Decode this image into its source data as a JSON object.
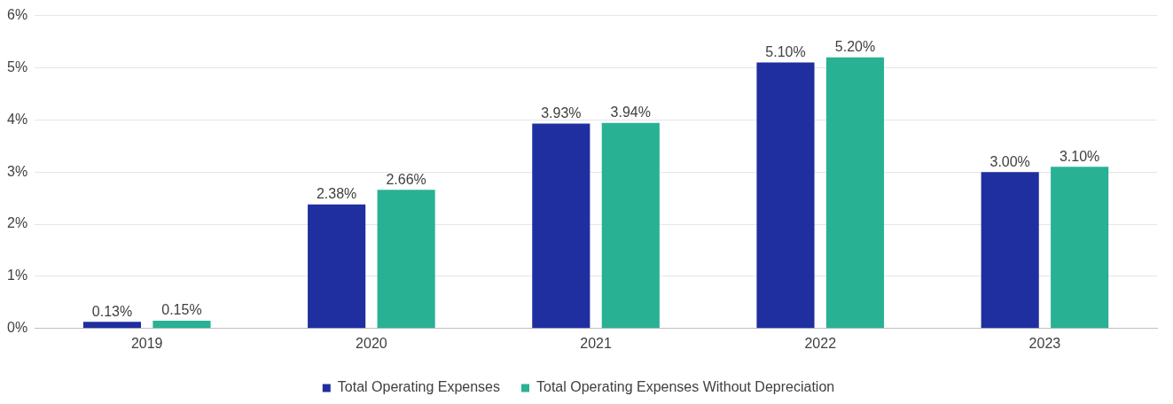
{
  "chart_data": {
    "type": "bar",
    "categories": [
      "2019",
      "2020",
      "2021",
      "2022",
      "2023"
    ],
    "series": [
      {
        "name": "Total Operating Expenses",
        "color": "#1f2f9f",
        "values": [
          0.13,
          2.38,
          3.93,
          5.1,
          3.0
        ],
        "value_labels": [
          "0.13%",
          "2.38%",
          "3.93%",
          "5.10%",
          "3.00%"
        ]
      },
      {
        "name": "Total Operating Expenses Without Depreciation",
        "color": "#29b194",
        "values": [
          0.15,
          2.66,
          3.94,
          5.2,
          3.1
        ],
        "value_labels": [
          "0.15%",
          "2.66%",
          "3.94%",
          "5.20%",
          "3.10%"
        ]
      }
    ],
    "ylim": [
      0,
      6
    ],
    "yticks": [
      {
        "value": 0,
        "label": "0%"
      },
      {
        "value": 1,
        "label": "1%"
      },
      {
        "value": 2,
        "label": "2%"
      },
      {
        "value": 3,
        "label": "3%"
      },
      {
        "value": 4,
        "label": "4%"
      },
      {
        "value": 5,
        "label": "5%"
      },
      {
        "value": 6,
        "label": "6%"
      }
    ],
    "grid": "y",
    "legend": "bottom"
  }
}
